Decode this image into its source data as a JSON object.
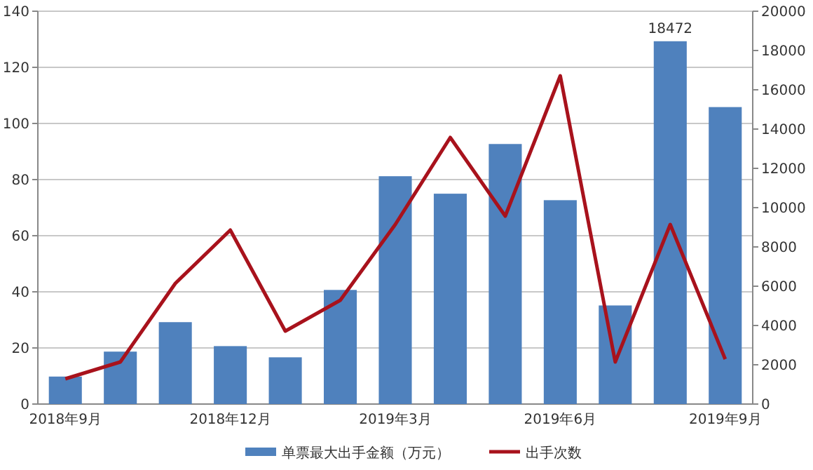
{
  "chart_data": {
    "type": "bar",
    "categories": [
      "2018年9月",
      null,
      null,
      "2018年12月",
      null,
      null,
      "2019年3月",
      null,
      null,
      "2019年6月",
      null,
      null,
      "2019年9月"
    ],
    "series": [
      {
        "name": "单票最大出手金额（万元）",
        "axis": "y2",
        "color": "#4f81bd",
        "values": [
          1400,
          2670,
          4170,
          2950,
          2380,
          5810,
          11600,
          10710,
          13240,
          10380,
          5020,
          18472,
          15120
        ],
        "value_labels": [
          null,
          null,
          null,
          null,
          null,
          null,
          null,
          null,
          null,
          null,
          null,
          "18472",
          null
        ]
      },
      {
        "name": "出手次数",
        "type": "line",
        "axis": "y",
        "color": "#a8121c",
        "values": [
          9,
          15,
          43,
          62,
          26,
          37,
          64,
          95,
          67,
          117,
          15,
          64,
          16
        ]
      }
    ],
    "ylim": [
      0,
      140
    ],
    "yticks": [
      0,
      20,
      40,
      60,
      80,
      100,
      120,
      140
    ],
    "y2lim": [
      0,
      20000
    ],
    "y2ticks": [
      0,
      2000,
      4000,
      6000,
      8000,
      10000,
      12000,
      14000,
      16000,
      18000,
      20000
    ],
    "grid": "y",
    "legend": "bottom",
    "marker": "none",
    "line_style": "solid"
  }
}
